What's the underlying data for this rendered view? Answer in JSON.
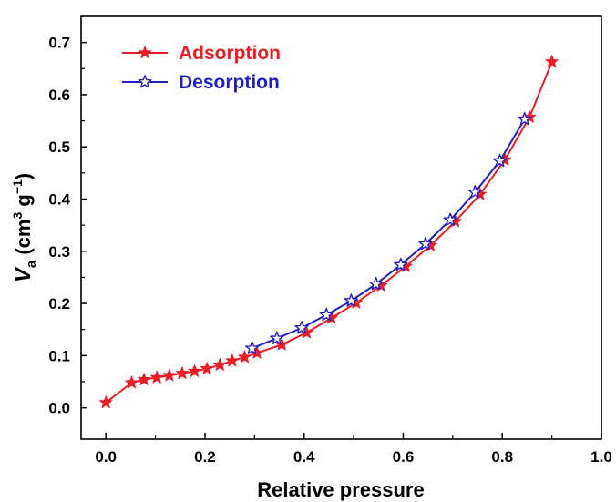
{
  "chart_data": {
    "type": "line",
    "xlabel": "Relative pressure",
    "ylabel": {
      "symbol": "V",
      "subscript": "a",
      "unit_open": " (cm",
      "sup1": "3",
      "unit_mid": " g",
      "sup2": "−1",
      "unit_close": ")"
    },
    "xlim": [
      -0.05,
      1.0
    ],
    "ylim": [
      -0.06,
      0.75
    ],
    "xticks": [
      "0.0",
      "0.2",
      "0.4",
      "0.6",
      "0.8",
      "1.0"
    ],
    "yticks": [
      "0.0",
      "0.1",
      "0.2",
      "0.3",
      "0.4",
      "0.5",
      "0.6",
      "0.7"
    ],
    "grid": false,
    "legend_position": "top-left",
    "series": [
      {
        "name": "Adsorption",
        "color": "#ee1c24",
        "marker": "filled-star",
        "x": [
          0.0,
          0.052,
          0.077,
          0.103,
          0.128,
          0.154,
          0.179,
          0.204,
          0.23,
          0.255,
          0.28,
          0.305,
          0.355,
          0.405,
          0.455,
          0.505,
          0.555,
          0.605,
          0.655,
          0.705,
          0.755,
          0.805,
          0.855,
          0.9
        ],
        "y": [
          0.01,
          0.048,
          0.054,
          0.058,
          0.062,
          0.066,
          0.07,
          0.075,
          0.082,
          0.09,
          0.097,
          0.105,
          0.121,
          0.144,
          0.172,
          0.201,
          0.234,
          0.271,
          0.311,
          0.357,
          0.409,
          0.475,
          0.557,
          0.663
        ]
      },
      {
        "name": "Desorption",
        "color": "#1f1fc8",
        "marker": "hollow-star",
        "x": [
          0.295,
          0.345,
          0.395,
          0.445,
          0.495,
          0.545,
          0.595,
          0.645,
          0.695,
          0.745,
          0.795,
          0.845
        ],
        "y": [
          0.114,
          0.133,
          0.153,
          0.178,
          0.205,
          0.237,
          0.274,
          0.314,
          0.36,
          0.413,
          0.473,
          0.553
        ]
      }
    ]
  }
}
